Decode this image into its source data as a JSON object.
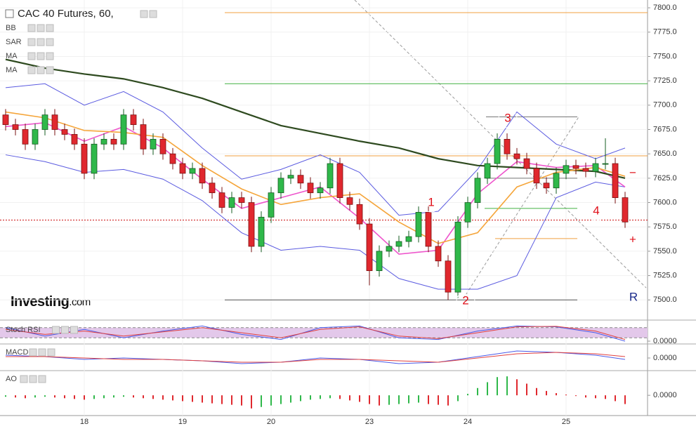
{
  "chart_data": {
    "type": "candlestick",
    "title": "CAC 40 Futures, 60,",
    "logo": "Investing",
    "logo_suffix": ".com",
    "categories": [
      null,
      null,
      null,
      null,
      null,
      null,
      null,
      null,
      "18",
      null,
      null,
      null,
      null,
      null,
      null,
      null,
      null,
      null,
      "19",
      null,
      null,
      null,
      null,
      null,
      null,
      null,
      null,
      "20",
      null,
      null,
      null,
      null,
      null,
      null,
      null,
      null,
      null,
      "23",
      null,
      null,
      null,
      null,
      null,
      null,
      null,
      null,
      null,
      "24",
      null,
      null,
      null,
      null,
      null,
      null,
      null,
      null,
      null,
      "25",
      null,
      null,
      null,
      null,
      null,
      null
    ],
    "open": [
      7690,
      7680,
      7675,
      7660,
      7675,
      7690,
      7675,
      7670,
      7660,
      7630,
      7660,
      7665,
      7660,
      7690,
      7680,
      7655,
      7665,
      7650,
      7640,
      7630,
      7635,
      7620,
      7610,
      7595,
      7605,
      7600,
      7555,
      7585,
      7610,
      7625,
      7628,
      7620,
      7610,
      7615,
      7640,
      7605,
      7598,
      7578,
      7530,
      7550,
      7555,
      7560,
      7565,
      7590,
      7555,
      7540,
      7508,
      7580,
      7600,
      7625,
      7640,
      7665,
      7650,
      7645,
      7635,
      7620,
      7615,
      7630,
      7638,
      7635,
      7632,
      7640,
      7640,
      7605
    ],
    "high": [
      7696,
      7686,
      7681,
      7681,
      7696,
      7696,
      7681,
      7676,
      7666,
      7666,
      7671,
      7671,
      7696,
      7696,
      7686,
      7671,
      7671,
      7656,
      7646,
      7641,
      7641,
      7626,
      7616,
      7611,
      7611,
      7606,
      7591,
      7616,
      7631,
      7634,
      7634,
      7626,
      7621,
      7646,
      7646,
      7611,
      7604,
      7584,
      7556,
      7561,
      7566,
      7571,
      7596,
      7596,
      7561,
      7546,
      7586,
      7606,
      7631,
      7646,
      7671,
      7671,
      7656,
      7651,
      7641,
      7626,
      7636,
      7644,
      7644,
      7641,
      7646,
      7666,
      7646,
      7611
    ],
    "low": [
      7674,
      7669,
      7654,
      7654,
      7669,
      7669,
      7664,
      7654,
      7624,
      7624,
      7654,
      7654,
      7654,
      7674,
      7649,
      7649,
      7644,
      7634,
      7624,
      7624,
      7614,
      7604,
      7589,
      7589,
      7594,
      7549,
      7549,
      7579,
      7604,
      7619,
      7614,
      7604,
      7604,
      7609,
      7599,
      7592,
      7572,
      7515,
      7524,
      7544,
      7549,
      7554,
      7559,
      7549,
      7534,
      7500,
      7502,
      7574,
      7594,
      7619,
      7634,
      7644,
      7639,
      7629,
      7614,
      7609,
      7609,
      7624,
      7629,
      7626,
      7626,
      7634,
      7599,
      7574
    ],
    "close": [
      7680,
      7675,
      7660,
      7675,
      7690,
      7675,
      7670,
      7660,
      7630,
      7660,
      7665,
      7660,
      7690,
      7680,
      7655,
      7665,
      7650,
      7640,
      7630,
      7635,
      7620,
      7610,
      7595,
      7605,
      7600,
      7555,
      7585,
      7610,
      7625,
      7628,
      7620,
      7610,
      7615,
      7640,
      7605,
      7598,
      7578,
      7530,
      7550,
      7555,
      7560,
      7565,
      7590,
      7555,
      7540,
      7508,
      7580,
      7600,
      7625,
      7640,
      7665,
      7650,
      7645,
      7635,
      7620,
      7615,
      7630,
      7638,
      7635,
      7632,
      7640,
      7640,
      7605,
      7580
    ],
    "up_color": "#2fb84a",
    "down_color": "#e0282e",
    "ylim": [
      7480,
      7808
    ],
    "yticks": [
      {
        "value": 7500,
        "label": "7500.0"
      },
      {
        "value": 7525,
        "label": "7525.0"
      },
      {
        "value": 7550,
        "label": "7550.0"
      },
      {
        "value": 7575,
        "label": "7575.0"
      },
      {
        "value": 7600,
        "label": "7600.0"
      },
      {
        "value": 7625,
        "label": "7625.0"
      },
      {
        "value": 7650,
        "label": "7650.0"
      },
      {
        "value": 7675,
        "label": "7675.0"
      },
      {
        "value": 7700,
        "label": "7700.0"
      },
      {
        "value": 7725,
        "label": "7725.0"
      },
      {
        "value": 7750,
        "label": "7750.0"
      },
      {
        "value": 7775,
        "label": "7775.0"
      },
      {
        "value": 7800,
        "label": "7800.0"
      }
    ],
    "indicator_x": [
      0,
      4,
      8,
      12,
      16,
      20,
      24,
      28,
      32,
      36,
      40,
      44,
      48,
      52,
      56,
      60,
      63
    ],
    "overlays": [
      {
        "name": "BB",
        "color": "#5a5ae0",
        "basis_color": "#ee55cc",
        "upper": [
          7718,
          7722,
          7700,
          7714,
          7693,
          7656,
          7624,
          7634,
          7649,
          7631,
          7587,
          7591,
          7634,
          7693,
          7660,
          7645,
          7656
        ],
        "basis": [
          7678,
          7682,
          7663,
          7678,
          7656,
          7624,
          7594,
          7605,
          7616,
          7584,
          7547,
          7551,
          7609,
          7642,
          7636,
          7638,
          7616
        ],
        "lower": [
          7649,
          7642,
          7631,
          7634,
          7624,
          7602,
          7569,
          7551,
          7555,
          7551,
          7522,
          7511,
          7511,
          7525,
          7605,
          7621,
          7616
        ]
      },
      {
        "name": "SAR"
      },
      {
        "name": "MA",
        "color": "#2e4a1f",
        "values": [
          7747,
          7738,
          7732,
          7727,
          7718,
          7707,
          7693,
          7679,
          7671,
          7663,
          7656,
          7645,
          7638,
          7636,
          7634,
          7632,
          7625
        ]
      },
      {
        "name": "MA",
        "color": "#f5a53a",
        "values": [
          7693,
          7687,
          7674,
          7672,
          7667,
          7638,
          7614,
          7598,
          7605,
          7609,
          7580,
          7558,
          7569,
          7616,
          7631,
          7636,
          7627
        ]
      }
    ],
    "levels": [
      {
        "value": 7795,
        "color": "#f0a040"
      },
      {
        "value": 7722,
        "color": "#40b040"
      },
      {
        "value": 7648,
        "color": "#f0a040"
      },
      {
        "value": 7688,
        "color": "#777777"
      },
      {
        "value": 7625,
        "color": "#777777"
      },
      {
        "value": 7594,
        "color": "#40b040"
      },
      {
        "value": 7563,
        "color": "#f0a040"
      },
      {
        "value": 7500,
        "color": "#555555"
      },
      {
        "value": 7582,
        "color": "#cc1010",
        "dash": true
      }
    ],
    "annotations": [
      "1",
      "2",
      "3",
      "4",
      "R",
      "−",
      "+"
    ],
    "panels": [
      {
        "name": "Stoch RSI",
        "type": "line",
        "ylim": [
          0,
          100
        ],
        "bands": [
          20,
          80
        ],
        "yticks": [
          {
            "value": 0,
            "label": "0.0000"
          }
        ],
        "series": [
          {
            "color": "#4a5ae8",
            "values": [
              80,
              30,
              70,
              20,
              60,
              90,
              40,
              10,
              80,
              90,
              20,
              10,
              60,
              90,
              85,
              50,
              0
            ]
          },
          {
            "color": "#e04040",
            "values": [
              70,
              40,
              60,
              30,
              55,
              80,
              50,
              20,
              70,
              85,
              30,
              15,
              50,
              85,
              88,
              60,
              10
            ]
          }
        ]
      },
      {
        "name": "MACD",
        "type": "line",
        "ylim": [
          -8,
          8
        ],
        "yticks": [
          {
            "value": 0,
            "label": "0.0000"
          }
        ],
        "series": [
          {
            "color": "#4a5ae8",
            "values": [
              2,
              1,
              -1,
              0,
              -1,
              -2,
              -4,
              -3,
              0,
              -1,
              -4,
              -3,
              1,
              5,
              4,
              2,
              -1
            ]
          },
          {
            "color": "#e04040",
            "values": [
              1,
              1,
              0,
              -1,
              -1,
              -2,
              -3,
              -3,
              -1,
              -1,
              -2,
              -3,
              0,
              3,
              4,
              3,
              1
            ]
          }
        ]
      },
      {
        "name": "AO",
        "type": "bars",
        "ylim": [
          -22,
          30
        ],
        "yticks": [
          {
            "value": 0,
            "label": "0.0000"
          }
        ],
        "up_color": "#2fb84a",
        "down_color": "#e0282e",
        "values": [
          -2,
          -3,
          -4,
          -3,
          -2,
          -3,
          -4,
          -5,
          -6,
          -5,
          -4,
          -3,
          -2,
          -3,
          -4,
          -5,
          -6,
          -7,
          -8,
          -9,
          -10,
          -11,
          -12,
          -13,
          -14,
          -18,
          -16,
          -14,
          -12,
          -10,
          -8,
          -6,
          -5,
          -4,
          -5,
          -7,
          -9,
          -12,
          -14,
          -13,
          -12,
          -11,
          -10,
          -12,
          -13,
          -14,
          -8,
          2,
          10,
          18,
          25,
          26,
          22,
          16,
          10,
          6,
          3,
          1,
          -1,
          -3,
          -4,
          -5,
          -8,
          -12
        ]
      }
    ]
  }
}
